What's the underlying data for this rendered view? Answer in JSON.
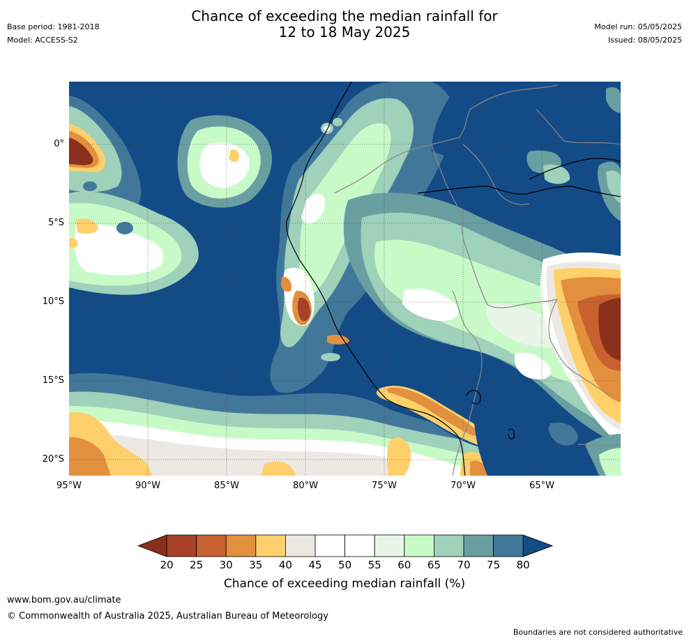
{
  "header": {
    "title_line1": "Chance of exceeding the median rainfall for",
    "title_line2": "12 to 18 May 2025",
    "base_period": "Base period: 1981-2018",
    "model": "Model: ACCESS-S2",
    "model_run": "Model run: 05/05/2025",
    "issued": "Issued: 08/05/2025"
  },
  "map": {
    "latitude_labels": [
      "0°",
      "5°S",
      "10°S",
      "15°S",
      "20°S"
    ],
    "longitude_labels": [
      "95°W",
      "90°W",
      "85°W",
      "80°W",
      "75°W",
      "70°W",
      "65°W"
    ],
    "colors": {
      "ocean_high": "#134b87",
      "c75": "#41789a",
      "c70": "#6a9fa2",
      "c65": "#9fd1bb",
      "c60": "#c8fac8",
      "c55": "#eaf5ea",
      "c50": "#ffffff",
      "c45": "#ece9e5",
      "c40": "#fdd06b",
      "c35": "#e3903e",
      "c30": "#c8612f",
      "c25": "#a84127",
      "c20": "#8b2f1d"
    }
  },
  "legend": {
    "labels": [
      "20",
      "25",
      "30",
      "35",
      "40",
      "45",
      "50",
      "55",
      "60",
      "65",
      "70",
      "75",
      "80"
    ],
    "colors": [
      "#a84127",
      "#c8612f",
      "#e3903e",
      "#fdd06b",
      "#ece9e5",
      "#ffffff",
      "#ffffff",
      "#eaf5ea",
      "#c8fac8",
      "#9fd1bb",
      "#6a9fa2",
      "#41789a"
    ],
    "low_color": "#8b2f1d",
    "high_color": "#134b87",
    "title": "Chance of exceeding median rainfall (%)"
  },
  "footer": {
    "website": "www.bom.gov.au/climate",
    "copyright": "© Commonwealth of Australia 2025, Australian Bureau of Meteorology",
    "disclaimer": "Boundaries are not considered authoritative"
  }
}
